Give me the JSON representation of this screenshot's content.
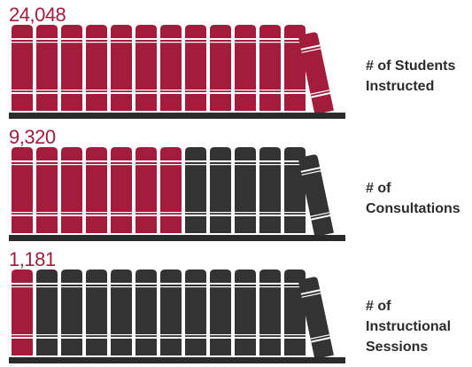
{
  "colors": {
    "filled": "#a31c3c",
    "empty": "#333333",
    "shelf": "#2b2b2b"
  },
  "chart_data": {
    "type": "pictograph",
    "books_per_row": 13,
    "rows": [
      {
        "value_label": "24,048",
        "value": 24048,
        "label": "# of Students Instructed",
        "label_lines": "# of Students\nInstructed",
        "filled_books": 13
      },
      {
        "value_label": "9,320",
        "value": 9320,
        "label": "# of Consultations",
        "label_lines": "# of\nConsultations",
        "filled_books": 7
      },
      {
        "value_label": "1,181",
        "value": 1181,
        "label": "# of Instructional Sessions",
        "label_lines": "# of\nInstructional\nSessions",
        "filled_books": 1
      }
    ]
  }
}
